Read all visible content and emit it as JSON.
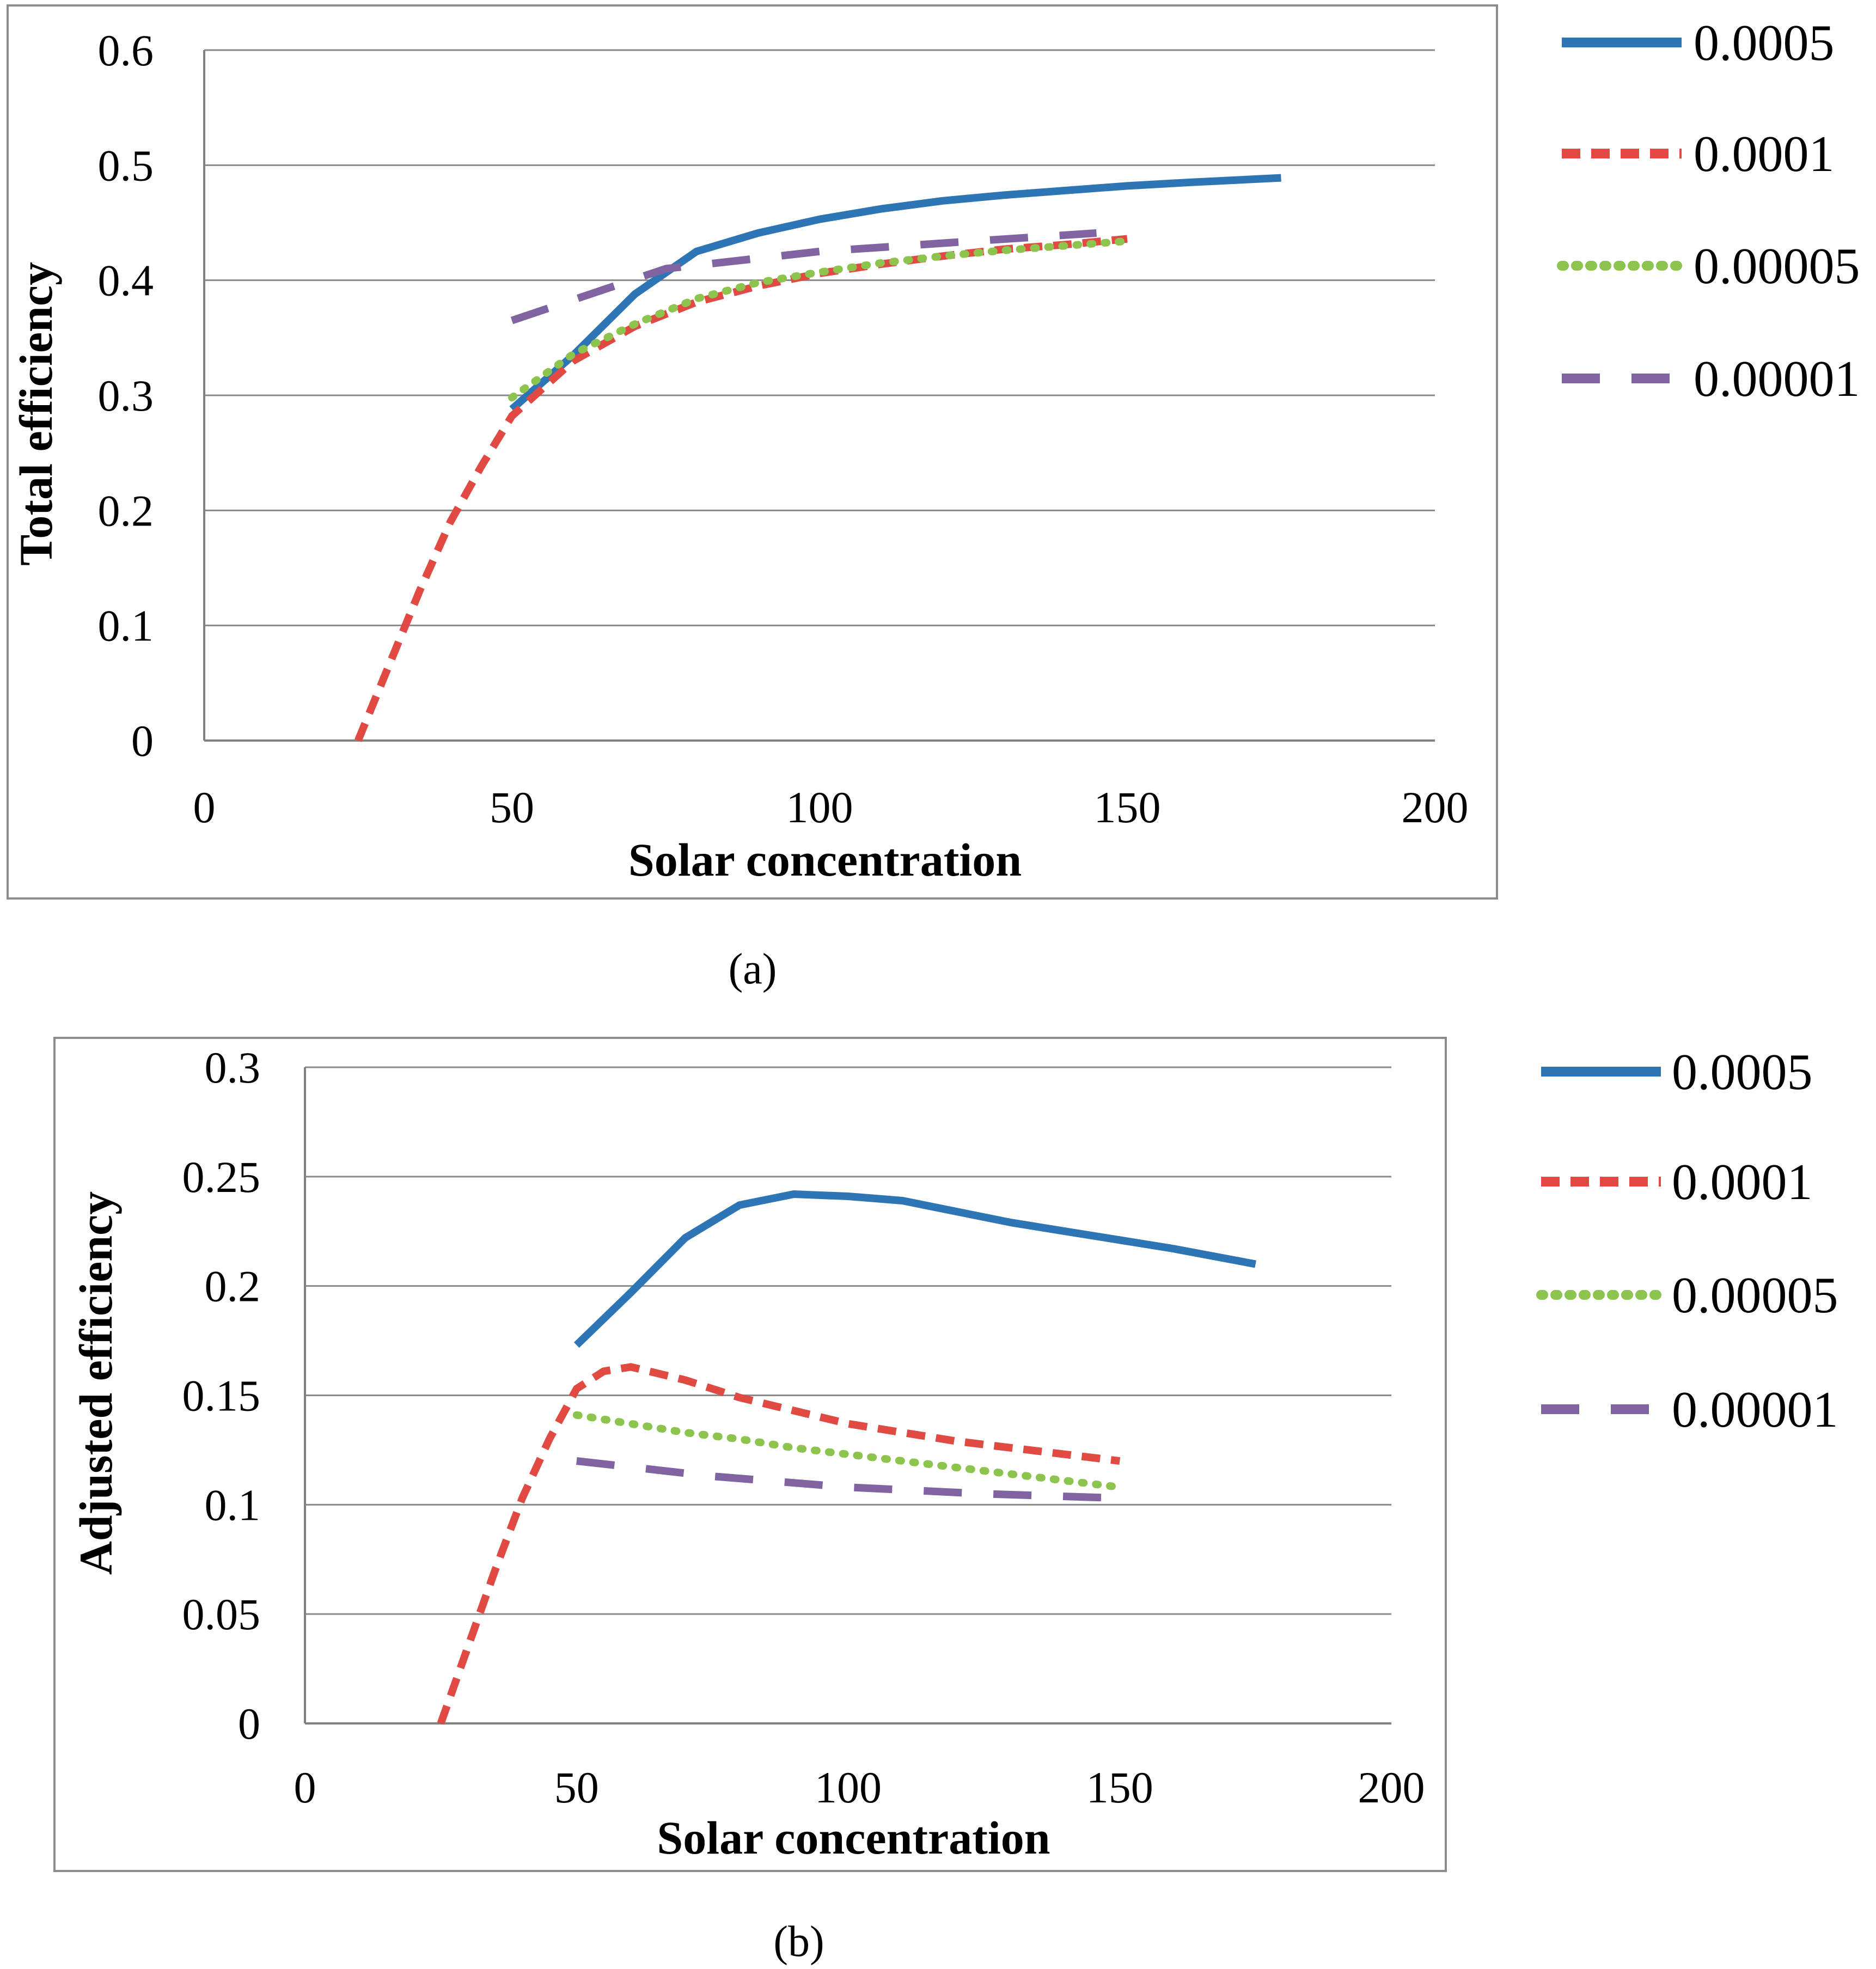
{
  "chart_data": [
    {
      "type": "line",
      "panel": "a",
      "caption": "(a)",
      "xlabel": "Solar concentration",
      "ylabel": "Total efficiency",
      "xlim": [
        0,
        200
      ],
      "ylim": [
        0,
        0.6
      ],
      "xticks": [
        0,
        50,
        100,
        150,
        200
      ],
      "yticks": [
        0,
        0.1,
        0.2,
        0.3,
        0.4,
        0.5,
        0.6
      ],
      "xtick_labels": [
        "0",
        "50",
        "100",
        "150",
        "200"
      ],
      "ytick_labels": [
        "0",
        "0.1",
        "0.2",
        "0.3",
        "0.4",
        "0.5",
        "0.6"
      ],
      "grid": "horizontal",
      "legend": "right",
      "series": [
        {
          "name": "0.0005",
          "style": "solid",
          "color": "#2E75B6",
          "x": [
            50,
            60,
            70,
            80,
            90,
            100,
            110,
            120,
            130,
            140,
            150,
            160,
            175
          ],
          "y": [
            0.288,
            0.335,
            0.388,
            0.425,
            0.441,
            0.453,
            0.462,
            0.469,
            0.474,
            0.478,
            0.482,
            0.485,
            0.489
          ]
        },
        {
          "name": "0.0001",
          "style": "dashed",
          "color": "#E04A43",
          "x": [
            25,
            30,
            35,
            40,
            45,
            50,
            60,
            70,
            80,
            90,
            100,
            110,
            120,
            130,
            140,
            150
          ],
          "y": [
            0.0,
            0.065,
            0.13,
            0.19,
            0.238,
            0.282,
            0.33,
            0.36,
            0.381,
            0.395,
            0.406,
            0.414,
            0.421,
            0.427,
            0.431,
            0.436
          ]
        },
        {
          "name": "0.00005",
          "style": "dotted",
          "color": "#8DC44E",
          "x": [
            50,
            60,
            70,
            80,
            90,
            100,
            110,
            120,
            130,
            140,
            150
          ],
          "y": [
            0.298,
            0.336,
            0.362,
            0.384,
            0.398,
            0.407,
            0.415,
            0.421,
            0.426,
            0.43,
            0.434
          ]
        },
        {
          "name": "0.00001",
          "style": "longdash",
          "color": "#8064A2",
          "x": [
            50,
            75,
            100,
            125,
            145
          ],
          "y": [
            0.365,
            0.41,
            0.425,
            0.434,
            0.441
          ]
        }
      ]
    },
    {
      "type": "line",
      "panel": "b",
      "caption": "(b)",
      "xlabel": "Solar concentration",
      "ylabel": "Adjusted efficiency",
      "xlim": [
        0,
        200
      ],
      "ylim": [
        0,
        0.3
      ],
      "xticks": [
        0,
        50,
        100,
        150,
        200
      ],
      "yticks": [
        0,
        0.05,
        0.1,
        0.15,
        0.2,
        0.25,
        0.3
      ],
      "xtick_labels": [
        "0",
        "50",
        "100",
        "150",
        "200"
      ],
      "ytick_labels": [
        "0",
        "0.05",
        "0.1",
        "0.15",
        "0.2",
        "0.25",
        "0.3"
      ],
      "grid": "horizontal",
      "legend": "right",
      "series": [
        {
          "name": "0.0005",
          "style": "solid",
          "color": "#2E75B6",
          "x": [
            50,
            60,
            70,
            80,
            90,
            100,
            110,
            120,
            130,
            140,
            150,
            160,
            175
          ],
          "y": [
            0.173,
            0.197,
            0.222,
            0.237,
            0.242,
            0.241,
            0.239,
            0.234,
            0.229,
            0.225,
            0.221,
            0.217,
            0.21
          ]
        },
        {
          "name": "0.0001",
          "style": "dashed",
          "color": "#E04A43",
          "x": [
            25,
            30,
            35,
            40,
            45,
            50,
            55,
            60,
            70,
            80,
            90,
            100,
            110,
            120,
            130,
            140,
            150
          ],
          "y": [
            0.0,
            0.035,
            0.07,
            0.103,
            0.13,
            0.153,
            0.161,
            0.163,
            0.157,
            0.149,
            0.143,
            0.137,
            0.133,
            0.129,
            0.126,
            0.123,
            0.12
          ]
        },
        {
          "name": "0.00005",
          "style": "dotted",
          "color": "#8DC44E",
          "x": [
            50,
            60,
            70,
            80,
            90,
            100,
            110,
            120,
            130,
            140,
            150
          ],
          "y": [
            0.141,
            0.137,
            0.133,
            0.13,
            0.126,
            0.123,
            0.12,
            0.117,
            0.114,
            0.111,
            0.108
          ]
        },
        {
          "name": "0.00001",
          "style": "longdash",
          "color": "#8064A2",
          "x": [
            50,
            75,
            100,
            125,
            150
          ],
          "y": [
            0.12,
            0.113,
            0.108,
            0.105,
            0.103
          ]
        }
      ]
    }
  ]
}
